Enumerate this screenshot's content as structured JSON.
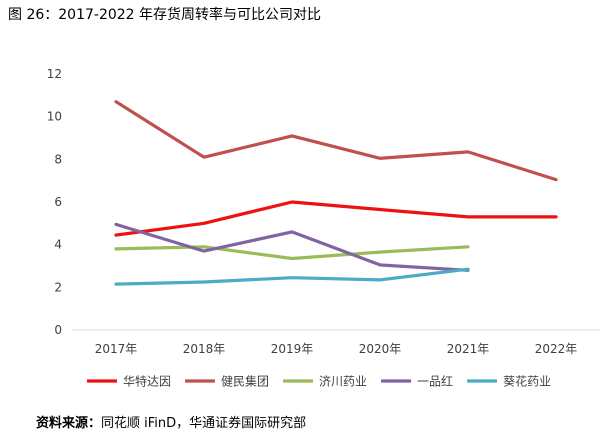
{
  "figure_title": "图 26：2017-2022 年存货周转率与可比公司对比",
  "source": {
    "label": "资料来源：",
    "text": "同花顺 iFinD，华通证券国际研究部"
  },
  "chart_data": {
    "type": "line",
    "title": "",
    "xlabel": "",
    "ylabel": "",
    "ylim": [
      0,
      12
    ],
    "yticks": [
      0,
      2,
      4,
      6,
      8,
      10,
      12
    ],
    "categories": [
      "2017年",
      "2018年",
      "2019年",
      "2020年",
      "2021年",
      "2022年"
    ],
    "grid": false,
    "legend_position": "bottom",
    "series": [
      {
        "name": "华特达因",
        "color": "#ee1111",
        "values": [
          4.45,
          5.0,
          6.0,
          5.65,
          5.3,
          5.3
        ]
      },
      {
        "name": "健民集团",
        "color": "#c0504d",
        "values": [
          10.7,
          8.1,
          9.1,
          8.05,
          8.35,
          7.05
        ]
      },
      {
        "name": "济川药业",
        "color": "#9bbb59",
        "values": [
          3.8,
          3.9,
          3.35,
          3.65,
          3.9,
          null
        ]
      },
      {
        "name": "一品红",
        "color": "#8064a2",
        "values": [
          4.95,
          3.7,
          4.6,
          3.05,
          2.8,
          null
        ]
      },
      {
        "name": "葵花药业",
        "color": "#4bacc6",
        "values": [
          2.15,
          2.25,
          2.45,
          2.35,
          2.85,
          null
        ]
      }
    ]
  }
}
